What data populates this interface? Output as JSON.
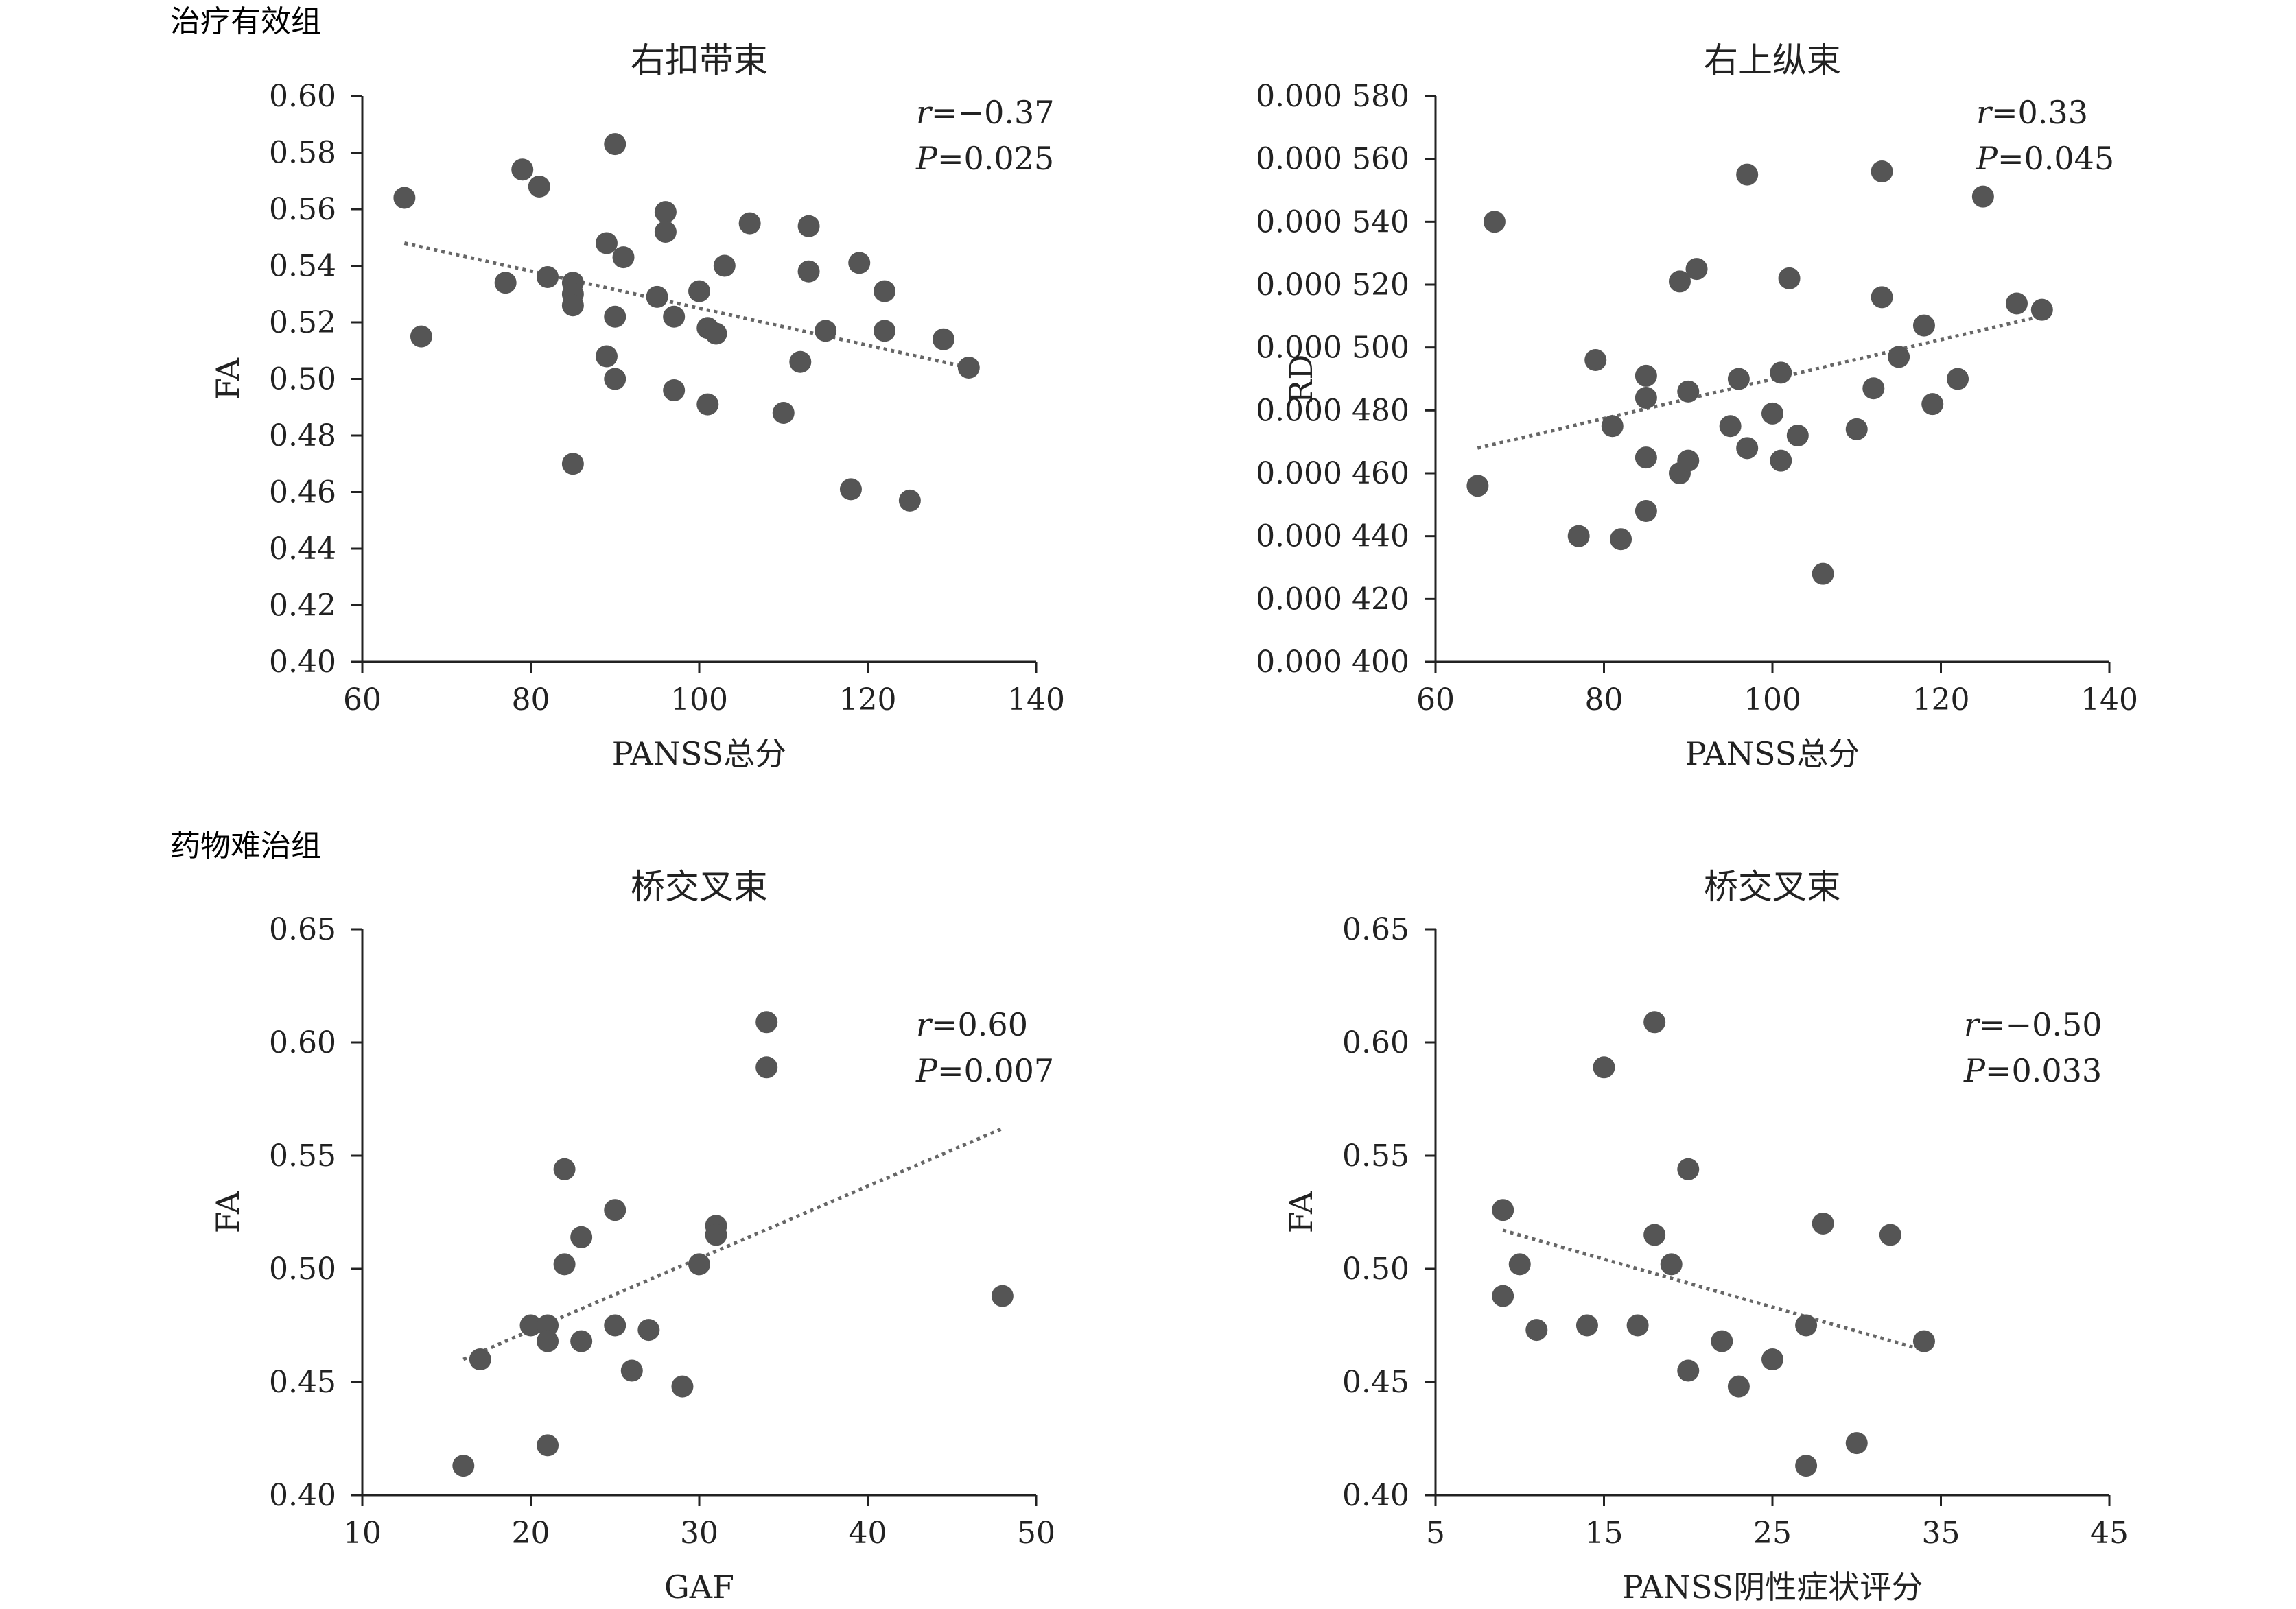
{
  "groups": [
    "治疗有效组",
    "药物难治组"
  ],
  "chart_data": [
    {
      "type": "scatter",
      "title": "右扣带束",
      "xlabel": "PANSS总分",
      "ylabel": "FA",
      "xlim": [
        60,
        140
      ],
      "ylim": [
        0.4,
        0.6
      ],
      "xticks": [
        "60",
        "80",
        "100",
        "120",
        "140"
      ],
      "yticks": [
        "0.40",
        "0.42",
        "0.44",
        "0.46",
        "0.48",
        "0.50",
        "0.52",
        "0.54",
        "0.56",
        "0.58",
        "0.60"
      ],
      "stats": {
        "r_label": "r",
        "r_value": "=−0.37",
        "p_label": "P",
        "p_value": "=0.025"
      },
      "trendline": {
        "x": [
          65,
          132
        ],
        "y": [
          0.548,
          0.504
        ]
      },
      "points": [
        [
          65,
          0.564
        ],
        [
          67,
          0.515
        ],
        [
          77,
          0.534
        ],
        [
          79,
          0.574
        ],
        [
          81,
          0.568
        ],
        [
          82,
          0.536
        ],
        [
          85,
          0.534
        ],
        [
          85,
          0.53
        ],
        [
          85,
          0.526
        ],
        [
          85,
          0.47
        ],
        [
          89,
          0.548
        ],
        [
          89,
          0.508
        ],
        [
          90,
          0.583
        ],
        [
          90,
          0.522
        ],
        [
          90,
          0.5
        ],
        [
          91,
          0.543
        ],
        [
          95,
          0.529
        ],
        [
          96,
          0.559
        ],
        [
          96,
          0.552
        ],
        [
          97,
          0.522
        ],
        [
          97,
          0.496
        ],
        [
          100,
          0.531
        ],
        [
          101,
          0.518
        ],
        [
          101,
          0.491
        ],
        [
          102,
          0.516
        ],
        [
          103,
          0.54
        ],
        [
          106,
          0.555
        ],
        [
          110,
          0.488
        ],
        [
          112,
          0.506
        ],
        [
          113,
          0.554
        ],
        [
          113,
          0.538
        ],
        [
          115,
          0.517
        ],
        [
          118,
          0.461
        ],
        [
          119,
          0.541
        ],
        [
          122,
          0.531
        ],
        [
          122,
          0.517
        ],
        [
          125,
          0.457
        ],
        [
          129,
          0.514
        ],
        [
          132,
          0.504
        ]
      ]
    },
    {
      "type": "scatter",
      "title": "右上纵束",
      "xlabel": "PANSS总分",
      "ylabel": "RD",
      "xlim": [
        60,
        140
      ],
      "ylim": [
        0.0004,
        0.00058
      ],
      "xticks": [
        "60",
        "80",
        "100",
        "120",
        "140"
      ],
      "yticks": [
        "0.000 400",
        "0.000 420",
        "0.000 440",
        "0.000 460",
        "0.000 480",
        "0.000 500",
        "0.000 520",
        "0.000 540",
        "0.000 560",
        "0.000 580"
      ],
      "stats": {
        "r_label": "r",
        "r_value": "=0.33",
        "p_label": "P",
        "p_value": "=0.045"
      },
      "trendline": {
        "x": [
          65,
          132
        ],
        "y": [
          0.000468,
          0.00051
        ]
      },
      "points": [
        [
          65,
          0.000456
        ],
        [
          67,
          0.00054
        ],
        [
          77,
          0.00044
        ],
        [
          79,
          0.000496
        ],
        [
          81,
          0.000475
        ],
        [
          82,
          0.000439
        ],
        [
          85,
          0.000491
        ],
        [
          85,
          0.000484
        ],
        [
          85,
          0.000465
        ],
        [
          85,
          0.000448
        ],
        [
          89,
          0.000521
        ],
        [
          89,
          0.00046
        ],
        [
          90,
          0.000486
        ],
        [
          90,
          0.000464
        ],
        [
          91,
          0.000525
        ],
        [
          95,
          0.000475
        ],
        [
          96,
          0.00049
        ],
        [
          97,
          0.000555
        ],
        [
          97,
          0.000468
        ],
        [
          100,
          0.000479
        ],
        [
          101,
          0.000492
        ],
        [
          101,
          0.000464
        ],
        [
          102,
          0.000522
        ],
        [
          103,
          0.000472
        ],
        [
          106,
          0.000428
        ],
        [
          110,
          0.000474
        ],
        [
          112,
          0.000487
        ],
        [
          113,
          0.000556
        ],
        [
          113,
          0.000516
        ],
        [
          115,
          0.000497
        ],
        [
          118,
          0.000507
        ],
        [
          119,
          0.000482
        ],
        [
          122,
          0.00049
        ],
        [
          125,
          0.000548
        ],
        [
          129,
          0.000514
        ],
        [
          132,
          0.000512
        ]
      ]
    },
    {
      "type": "scatter",
      "title": "桥交叉束",
      "xlabel": "GAF",
      "ylabel": "FA",
      "xlim": [
        10,
        50
      ],
      "ylim": [
        0.4,
        0.65
      ],
      "xticks": [
        "10",
        "20",
        "30",
        "40",
        "50"
      ],
      "yticks": [
        "0.40",
        "0.45",
        "0.50",
        "0.55",
        "0.60",
        "0.65"
      ],
      "stats": {
        "r_label": "r",
        "r_value": "=0.60",
        "p_label": "P",
        "p_value": "=0.007"
      },
      "trendline": {
        "x": [
          16,
          48
        ],
        "y": [
          0.46,
          0.562
        ]
      },
      "points": [
        [
          16,
          0.413
        ],
        [
          17,
          0.46
        ],
        [
          20,
          0.475
        ],
        [
          21,
          0.475
        ],
        [
          21,
          0.468
        ],
        [
          21,
          0.422
        ],
        [
          22,
          0.544
        ],
        [
          22,
          0.502
        ],
        [
          23,
          0.514
        ],
        [
          23,
          0.468
        ],
        [
          25,
          0.526
        ],
        [
          25,
          0.475
        ],
        [
          26,
          0.455
        ],
        [
          27,
          0.473
        ],
        [
          29,
          0.448
        ],
        [
          30,
          0.502
        ],
        [
          31,
          0.519
        ],
        [
          31,
          0.515
        ],
        [
          34,
          0.609
        ],
        [
          34,
          0.589
        ],
        [
          48,
          0.488
        ]
      ]
    },
    {
      "type": "scatter",
      "title": "桥交叉束",
      "xlabel": "PANSS阴性症状评分",
      "ylabel": "FA",
      "xlim": [
        5,
        45
      ],
      "ylim": [
        0.4,
        0.65
      ],
      "xticks": [
        "5",
        "15",
        "25",
        "35",
        "45"
      ],
      "yticks": [
        "0.40",
        "0.45",
        "0.50",
        "0.55",
        "0.60",
        "0.65"
      ],
      "stats": {
        "r_label": "r",
        "r_value": "=−0.50",
        "p_label": "P",
        "p_value": "=0.033"
      },
      "trendline": {
        "x": [
          9,
          34
        ],
        "y": [
          0.517,
          0.464
        ]
      },
      "points": [
        [
          9,
          0.526
        ],
        [
          9,
          0.488
        ],
        [
          10,
          0.502
        ],
        [
          11,
          0.473
        ],
        [
          14,
          0.475
        ],
        [
          15,
          0.589
        ],
        [
          17,
          0.475
        ],
        [
          18,
          0.609
        ],
        [
          18,
          0.515
        ],
        [
          19,
          0.502
        ],
        [
          20,
          0.544
        ],
        [
          20,
          0.455
        ],
        [
          22,
          0.468
        ],
        [
          23,
          0.448
        ],
        [
          25,
          0.46
        ],
        [
          27,
          0.475
        ],
        [
          27,
          0.413
        ],
        [
          28,
          0.52
        ],
        [
          30,
          0.423
        ],
        [
          32,
          0.515
        ],
        [
          34,
          0.468
        ]
      ]
    }
  ]
}
